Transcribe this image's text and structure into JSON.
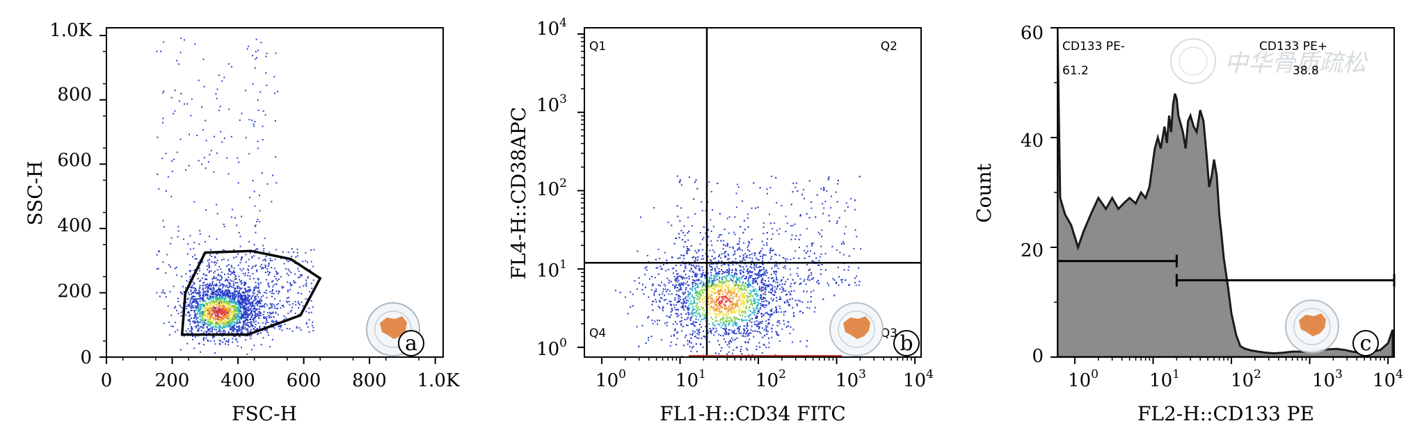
{
  "chart_data": [
    {
      "type": "scatter",
      "panel_label": "a",
      "xlabel": "FSC-H",
      "ylabel": "SSC-H",
      "xlim": [
        0,
        1024
      ],
      "ylim": [
        0,
        1024
      ],
      "x_ticks": [
        0,
        200,
        400,
        600,
        800,
        1000
      ],
      "x_tick_labels": [
        "0",
        "200",
        "400",
        "600",
        "800",
        "1.0K"
      ],
      "y_ticks": [
        0,
        200,
        400,
        600,
        800,
        1000
      ],
      "y_tick_labels": [
        "0",
        "200",
        "400",
        "600",
        "800",
        "1.0K"
      ],
      "plot_style": "density dot plot (blue low density, yellow/red high density)",
      "population_core": {
        "x": [
          300,
          420
        ],
        "y": [
          100,
          240
        ]
      },
      "gate_polygon": [
        [
          230,
          70
        ],
        [
          240,
          200
        ],
        [
          300,
          325
        ],
        [
          440,
          330
        ],
        [
          560,
          305
        ],
        [
          650,
          245
        ],
        [
          590,
          130
        ],
        [
          430,
          70
        ]
      ],
      "grid": false
    },
    {
      "type": "scatter",
      "panel_label": "b",
      "xlabel": "FL1-H::CD34 FITC",
      "ylabel": "FL4-H::CD38APC",
      "x_scale": "log",
      "y_scale": "log",
      "xlim": [
        0.6,
        12000
      ],
      "ylim": [
        0.75,
        12000
      ],
      "x_ticks": [
        1,
        10,
        100,
        1000,
        10000
      ],
      "y_ticks": [
        1,
        10,
        100,
        1000,
        10000
      ],
      "tick_base": "10",
      "tick_exponents": [
        "0",
        "1",
        "2",
        "3",
        "4"
      ],
      "quadrant_divider": {
        "x": 22,
        "y": 12
      },
      "quadrants": [
        "Q1",
        "Q2",
        "Q3",
        "Q4"
      ],
      "plot_style": "density dot plot",
      "grid": false
    },
    {
      "type": "area",
      "panel_label": "c",
      "xlabel": "FL2-H::CD133 PE",
      "ylabel": "Count",
      "x_scale": "log",
      "xlim": [
        0.6,
        12000
      ],
      "ylim": [
        0,
        60
      ],
      "x_ticks": [
        1,
        10,
        100,
        1000,
        10000
      ],
      "tick_base": "10",
      "tick_exponents": [
        "0",
        "1",
        "2",
        "3",
        "4"
      ],
      "y_ticks": [
        0,
        20,
        40,
        60
      ],
      "y_tick_labels": [
        "0",
        "20",
        "40",
        "60"
      ],
      "x": [
        0.6,
        0.65,
        0.75,
        0.9,
        1.1,
        1.3,
        1.6,
        2,
        2.5,
        3,
        3.6,
        4.2,
        5,
        6,
        7,
        8,
        9,
        10.5,
        11.5,
        12.5,
        14,
        15,
        16,
        17,
        18,
        19,
        20,
        21,
        22,
        24,
        26,
        28,
        30,
        33,
        36,
        40,
        44,
        48,
        52,
        56,
        60,
        65,
        70,
        75,
        80,
        90,
        100,
        115,
        130,
        150,
        180,
        220,
        280,
        350,
        450,
        600,
        800,
        1000,
        1300,
        1700,
        2200,
        2800,
        3500,
        4500,
        6000,
        8000,
        10000,
        11500
      ],
      "y": [
        60,
        29,
        26,
        24,
        20,
        23,
        26,
        29,
        27,
        29,
        27,
        28,
        29,
        28,
        30,
        29,
        31,
        38,
        40,
        38,
        42,
        39,
        44,
        41,
        46,
        48,
        47,
        44,
        43,
        41,
        38,
        43,
        44,
        42,
        41,
        45,
        43,
        37,
        31,
        33,
        36,
        33,
        26,
        22,
        18,
        13,
        8,
        4,
        2,
        1.5,
        1.2,
        1.0,
        0.8,
        0.7,
        0.8,
        1.0,
        1.0,
        0.9,
        1.2,
        1.4,
        1.5,
        1.3,
        1.0,
        0.8,
        0.9,
        1.3,
        2.5,
        5
      ],
      "gates": [
        {
          "name": "CD133 PE-",
          "value": "61.2",
          "x_range": [
            0.6,
            20
          ],
          "y_level": 17.5
        },
        {
          "name": "CD133 PE+",
          "value": "38.8",
          "x_range": [
            20,
            12000
          ],
          "y_level": 14
        }
      ],
      "fill_color": "#8c8c8c",
      "grid": false
    }
  ],
  "panels": {
    "a": {
      "letter": "a",
      "xlabel": "FSC-H",
      "ylabel": "SSC-H",
      "x_tick_labels": [
        "0",
        "200",
        "400",
        "600",
        "800",
        "1.0K"
      ],
      "y_tick_labels": [
        "0",
        "200",
        "400",
        "600",
        "800",
        "1.0K"
      ]
    },
    "b": {
      "letter": "b",
      "xlabel": "FL1-H::CD34 FITC",
      "ylabel": "FL4-H::CD38APC",
      "quadrant_labels": [
        "Q1",
        "Q2",
        "Q3",
        "Q4"
      ],
      "tick_base": "10",
      "tick_exponents": [
        "0",
        "1",
        "2",
        "3",
        "4"
      ]
    },
    "c": {
      "letter": "c",
      "xlabel": "FL2-H::CD133 PE",
      "ylabel": "Count",
      "y_tick_labels": [
        "0",
        "20",
        "40",
        "60"
      ],
      "tick_base": "10",
      "tick_exponents": [
        "0",
        "1",
        "2",
        "3",
        "4"
      ],
      "gate_neg_name": "CD133 PE-",
      "gate_neg_value": "61.2",
      "gate_pos_name": "CD133 PE+",
      "gate_pos_value": "38.8"
    }
  },
  "watermark_text": "中华骨质疏松"
}
